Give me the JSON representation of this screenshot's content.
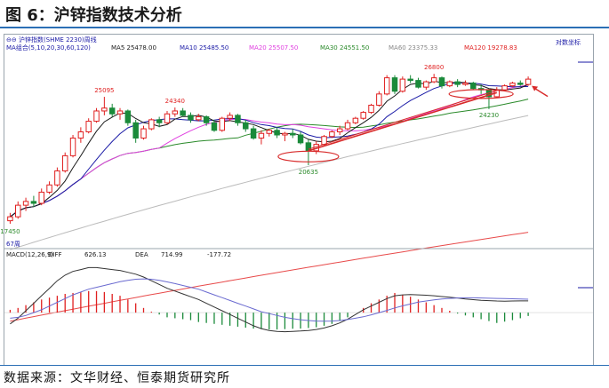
{
  "figure": {
    "title": "图 6：沪锌指数技术分析",
    "source": "数据来源：文华财经、恒泰期货研究所"
  },
  "header": {
    "row1": "⊖⊖ 沪锌指数(SHME 2230)周线",
    "row2": [
      {
        "label": "MA组合(5,10,20,30,60,120)",
        "color": "#1a1aa6"
      },
      {
        "label": "MA5 25478.00",
        "color": "#1a1a1a"
      },
      {
        "label": "MA10 25485.50",
        "color": "#1a1aa6"
      },
      {
        "label": "MA20 25507.50",
        "color": "#e040e0"
      },
      {
        "label": "MA30 24551.50",
        "color": "#2a8a2a"
      },
      {
        "label": "MA60 23375.33",
        "color": "#888888"
      },
      {
        "label": "MA120 19278.83",
        "color": "#e02020"
      }
    ],
    "log_label": "对数坐标",
    "bottom_left": "67周"
  },
  "annotations": [
    {
      "text": "25095",
      "color": "#e02020"
    },
    {
      "text": "24340",
      "color": "#e02020"
    },
    {
      "text": "26800",
      "color": "#e02020"
    },
    {
      "text": "24230",
      "color": "#2a8a2a"
    },
    {
      "text": "20635",
      "color": "#2a8a2a"
    },
    {
      "text": "17450",
      "color": "#2a8a2a"
    }
  ],
  "macd_header": {
    "name": "MACD(12,26,9)",
    "diff_label": "DIFF",
    "diff_value": "626.13",
    "dea_label": "DEA",
    "dea_value": "714.99",
    "macd_value": "-177.72"
  },
  "colors": {
    "up": "#e02020",
    "down": "#1a8a3a",
    "ma5": "#1a1a1a",
    "ma10": "#1a1aa6",
    "ma20": "#e040e0",
    "ma30": "#2a8a2a",
    "ma60": "#bbbbbb",
    "ma120": "#e84a4a",
    "diff": "#333333",
    "dea": "#6a6ad0",
    "trend": "#d82a2a"
  },
  "chart_data": [
    {
      "type": "candlestick",
      "title": "沪锌指数(SHME 2230)周线",
      "y_scale": "log",
      "candles": [
        [
          17600,
          18000,
          17450,
          17800
        ],
        [
          17800,
          18600,
          17700,
          18400
        ],
        [
          18400,
          18800,
          18100,
          18600
        ],
        [
          18600,
          18900,
          18300,
          18500
        ],
        [
          18500,
          19300,
          18400,
          19100
        ],
        [
          19100,
          19700,
          19000,
          19500
        ],
        [
          19500,
          20500,
          19400,
          20300
        ],
        [
          20300,
          21400,
          20200,
          21200
        ],
        [
          21200,
          22500,
          21100,
          22300
        ],
        [
          22300,
          23000,
          22000,
          22700
        ],
        [
          22700,
          23600,
          22600,
          23400
        ],
        [
          23400,
          24300,
          23300,
          24100
        ],
        [
          24100,
          25095,
          23800,
          24300
        ],
        [
          24300,
          24600,
          23700,
          23900
        ],
        [
          23900,
          24300,
          23500,
          24100
        ],
        [
          24100,
          24200,
          23100,
          23300
        ],
        [
          23300,
          23500,
          22000,
          22300
        ],
        [
          22300,
          23100,
          22200,
          22900
        ],
        [
          22900,
          23600,
          22800,
          23500
        ],
        [
          23500,
          23700,
          23000,
          23300
        ],
        [
          23300,
          24100,
          23200,
          23900
        ],
        [
          23900,
          24340,
          23700,
          24100
        ],
        [
          24100,
          24300,
          23700,
          23800
        ],
        [
          23800,
          24000,
          23300,
          23500
        ],
        [
          23500,
          23900,
          23400,
          23700
        ],
        [
          23700,
          23800,
          23100,
          23300
        ],
        [
          23300,
          23500,
          22700,
          22800
        ],
        [
          22800,
          23700,
          22700,
          23600
        ],
        [
          23600,
          24000,
          23400,
          23800
        ],
        [
          23800,
          23900,
          23100,
          23300
        ],
        [
          23300,
          23500,
          22700,
          22900
        ],
        [
          22900,
          23100,
          22200,
          22300
        ],
        [
          22300,
          22800,
          21900,
          22600
        ],
        [
          22600,
          22900,
          22400,
          22800
        ],
        [
          22800,
          23000,
          22300,
          22500
        ],
        [
          22500,
          22700,
          22100,
          22600
        ],
        [
          22600,
          22900,
          22300,
          22500
        ],
        [
          22500,
          22700,
          21900,
          22000
        ],
        [
          22000,
          22200,
          20635,
          21500
        ],
        [
          21500,
          22100,
          21300,
          21900
        ],
        [
          21900,
          22500,
          21800,
          22400
        ],
        [
          22400,
          22800,
          22300,
          22700
        ],
        [
          22700,
          23100,
          22500,
          22900
        ],
        [
          22900,
          23500,
          22800,
          23300
        ],
        [
          23300,
          23700,
          23200,
          23600
        ],
        [
          23600,
          24100,
          23500,
          24000
        ],
        [
          24000,
          24600,
          23900,
          24500
        ],
        [
          24500,
          25500,
          24400,
          25300
        ],
        [
          25300,
          26700,
          25200,
          26500
        ],
        [
          26500,
          26700,
          25300,
          25500
        ],
        [
          25500,
          26600,
          25400,
          26400
        ],
        [
          26400,
          26700,
          26100,
          26300
        ],
        [
          26300,
          26500,
          25700,
          25800
        ],
        [
          25800,
          26300,
          25600,
          26200
        ],
        [
          26200,
          26800,
          26100,
          26500
        ],
        [
          26500,
          26600,
          25700,
          25900
        ],
        [
          25900,
          26300,
          25800,
          26200
        ],
        [
          26200,
          26400,
          25800,
          26000
        ],
        [
          26000,
          26300,
          25900,
          26100
        ],
        [
          26100,
          26200,
          25600,
          25700
        ],
        [
          25700,
          26000,
          25300,
          25600
        ],
        [
          25600,
          25700,
          24230,
          25100
        ],
        [
          25100,
          25800,
          25000,
          25600
        ],
        [
          25600,
          26000,
          25500,
          25900
        ],
        [
          25900,
          26200,
          25800,
          26100
        ],
        [
          26100,
          26300,
          25900,
          26000
        ],
        [
          26000,
          26600,
          25900,
          26400
        ]
      ],
      "x_range": [
        0,
        70
      ],
      "ylim": [
        16500,
        28500
      ]
    },
    {
      "type": "bar",
      "title": "MACD(12,26,9)",
      "series_lines": [
        "DIFF",
        "DEA"
      ],
      "macd": [
        150,
        250,
        400,
        550,
        700,
        800,
        900,
        1000,
        1050,
        1100,
        1150,
        1150,
        1100,
        1000,
        900,
        700,
        500,
        250,
        50,
        -100,
        -250,
        -300,
        -350,
        -400,
        -500,
        -550,
        -600,
        -650,
        -700,
        -750,
        -800,
        -850,
        -880,
        -900,
        -900,
        -880,
        -860,
        -850,
        -820,
        -780,
        -700,
        -600,
        -450,
        -250,
        0,
        250,
        500,
        700,
        900,
        1050,
        950,
        850,
        700,
        550,
        400,
        250,
        100,
        -50,
        -150,
        -250,
        -350,
        -450,
        -550,
        -480,
        -400,
        -300,
        -178
      ],
      "diff": [
        -600,
        -300,
        100,
        500,
        900,
        1300,
        1700,
        2000,
        2200,
        2300,
        2400,
        2400,
        2350,
        2300,
        2250,
        2150,
        2050,
        1900,
        1700,
        1500,
        1300,
        1150,
        1000,
        850,
        700,
        500,
        300,
        100,
        -100,
        -300,
        -500,
        -700,
        -850,
        -950,
        -1000,
        -1020,
        -1000,
        -980,
        -950,
        -900,
        -820,
        -700,
        -550,
        -350,
        -100,
        150,
        350,
        550,
        750,
        900,
        950,
        960,
        950,
        930,
        900,
        860,
        820,
        780,
        730,
        690,
        660,
        640,
        620,
        610,
        620,
        625,
        626
      ],
      "dea": [
        -300,
        -250,
        -150,
        0,
        150,
        350,
        550,
        750,
        950,
        1100,
        1250,
        1350,
        1450,
        1550,
        1650,
        1720,
        1780,
        1800,
        1780,
        1720,
        1640,
        1550,
        1450,
        1350,
        1250,
        1100,
        950,
        800,
        650,
        500,
        350,
        200,
        50,
        -50,
        -150,
        -250,
        -320,
        -380,
        -420,
        -450,
        -460,
        -450,
        -420,
        -370,
        -300,
        -220,
        -120,
        0,
        120,
        250,
        360,
        460,
        560,
        620,
        680,
        730,
        760,
        780,
        790,
        790,
        780,
        770,
        760,
        750,
        740,
        730,
        715
      ],
      "ylim": [
        -2600,
        2800
      ]
    }
  ]
}
